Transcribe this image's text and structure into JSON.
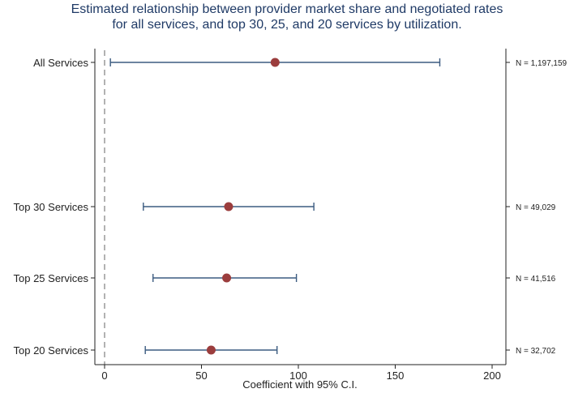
{
  "chart_data": {
    "type": "scatter",
    "subtype": "coefficient-plot-with-confidence-intervals",
    "title_lines": [
      "Estimated relationship between provider market share and negotiated rates",
      "for all services, and top 30, 25, and 20 services by utilization."
    ],
    "xlabel": "Coefficient with 95% C.I.",
    "xlim": [
      -5,
      205
    ],
    "xticks": [
      0,
      50,
      100,
      150,
      200
    ],
    "reference_line_x": 0,
    "colors": {
      "point": "#9b3d3d",
      "ci_line": "#3b5b80",
      "axis": "#222222",
      "title": "#1f3a66",
      "reference": "#888888"
    },
    "series": [
      {
        "label": "All Services",
        "estimate": 88,
        "ci_low": 3,
        "ci_high": 173,
        "n_label": "N = 1,197,159"
      },
      {
        "label": "Top 30 Services",
        "estimate": 64,
        "ci_low": 20,
        "ci_high": 108,
        "n_label": "N = 49,029"
      },
      {
        "label": "Top 25 Services",
        "estimate": 63,
        "ci_low": 25,
        "ci_high": 99,
        "n_label": "N = 41,516"
      },
      {
        "label": "Top 20 Services",
        "estimate": 55,
        "ci_low": 21,
        "ci_high": 89,
        "n_label": "N = 32,702"
      }
    ]
  }
}
